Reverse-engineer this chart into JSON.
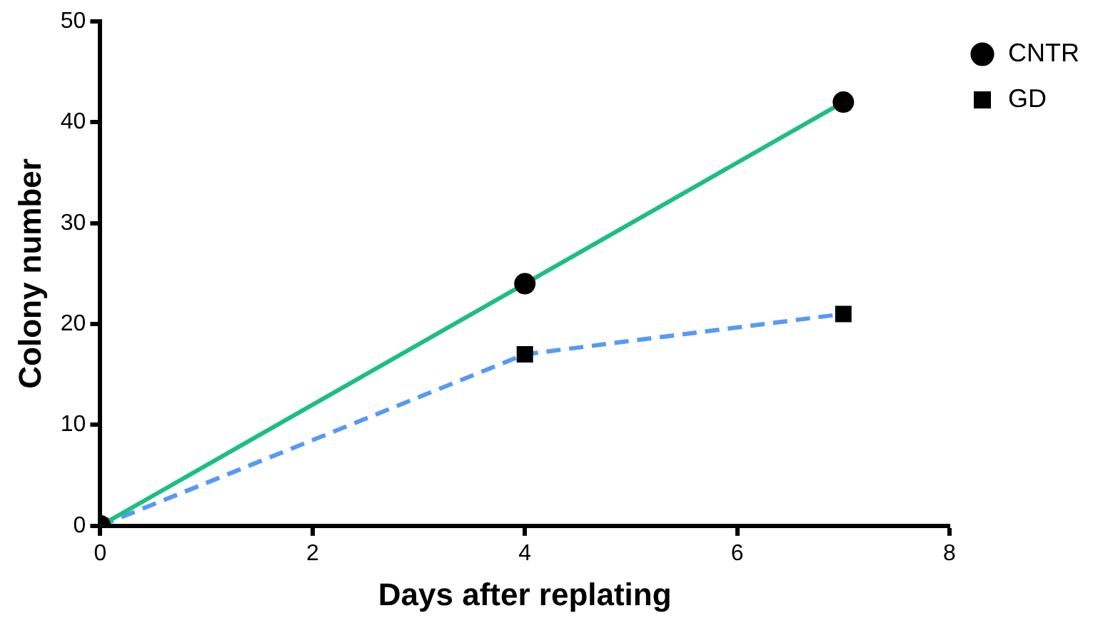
{
  "chart_data": {
    "type": "line",
    "xlabel": "Days after replating",
    "ylabel": "Colony number",
    "x": [
      0,
      4,
      7
    ],
    "series": [
      {
        "name": "CNTR",
        "color": "#1dbf80",
        "values": [
          0,
          24,
          42
        ],
        "marker": "circle",
        "line_style": "solid"
      },
      {
        "name": "GD",
        "color": "#559af5",
        "values": [
          0,
          17,
          21
        ],
        "marker": "square",
        "line_style": "dashed"
      }
    ],
    "xlim": [
      0,
      8
    ],
    "xticks": [
      0,
      2,
      4,
      6,
      8
    ],
    "ylim": [
      0,
      50
    ],
    "yticks": [
      0,
      10,
      20,
      30,
      40,
      50
    ],
    "grid": false,
    "legend": "top right"
  }
}
